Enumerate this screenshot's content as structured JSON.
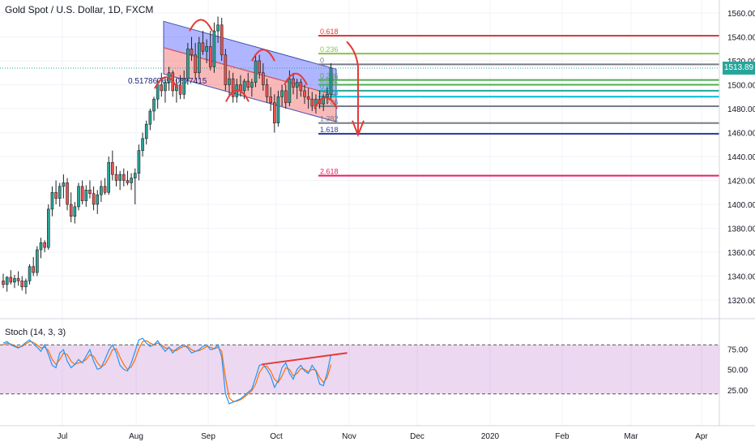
{
  "header": {
    "title": "Gold Spot / U.S. Dollar, 1D, FXCM",
    "last_price": "1513.89"
  },
  "chart_data": {
    "type": "candlestick",
    "symbol": "Gold Spot / U.S. Dollar",
    "interval": "1D",
    "source": "FXCM",
    "yaxis": {
      "ticks": [
        "1560.00",
        "1540.00",
        "1520.00",
        "1500.00",
        "1480.00",
        "1460.00",
        "1440.00",
        "1420.00",
        "1400.00",
        "1380.00",
        "1360.00",
        "1340.00",
        "1320.00"
      ],
      "range": [
        1310,
        1564
      ]
    },
    "xaxis": {
      "ticks": [
        "Jul",
        "Aug",
        "Sep",
        "Oct",
        "Nov",
        "Dec",
        "2020",
        "Feb",
        "Mar",
        "Apr"
      ]
    },
    "candles": [
      [
        1336,
        1342,
        1330,
        1333
      ],
      [
        1333,
        1340,
        1327,
        1339
      ],
      [
        1339,
        1345,
        1333,
        1335
      ],
      [
        1335,
        1341,
        1330,
        1338
      ],
      [
        1338,
        1344,
        1332,
        1336
      ],
      [
        1336,
        1340,
        1328,
        1331
      ],
      [
        1331,
        1338,
        1325,
        1336
      ],
      [
        1336,
        1350,
        1333,
        1348
      ],
      [
        1348,
        1356,
        1340,
        1343
      ],
      [
        1343,
        1365,
        1340,
        1362
      ],
      [
        1362,
        1372,
        1355,
        1368
      ],
      [
        1368,
        1370,
        1360,
        1364
      ],
      [
        1364,
        1400,
        1362,
        1396
      ],
      [
        1396,
        1415,
        1390,
        1410
      ],
      [
        1410,
        1420,
        1400,
        1405
      ],
      [
        1405,
        1418,
        1398,
        1415
      ],
      [
        1415,
        1425,
        1405,
        1418
      ],
      [
        1418,
        1422,
        1395,
        1400
      ],
      [
        1400,
        1410,
        1385,
        1390
      ],
      [
        1390,
        1402,
        1384,
        1398
      ],
      [
        1398,
        1418,
        1395,
        1415
      ],
      [
        1415,
        1420,
        1400,
        1403
      ],
      [
        1403,
        1416,
        1398,
        1412
      ],
      [
        1412,
        1420,
        1405,
        1409
      ],
      [
        1409,
        1415,
        1395,
        1400
      ],
      [
        1400,
        1412,
        1392,
        1408
      ],
      [
        1408,
        1420,
        1402,
        1415
      ],
      [
        1415,
        1422,
        1408,
        1410
      ],
      [
        1410,
        1440,
        1408,
        1435
      ],
      [
        1435,
        1445,
        1420,
        1425
      ],
      [
        1425,
        1432,
        1415,
        1420
      ],
      [
        1420,
        1428,
        1412,
        1425
      ],
      [
        1425,
        1430,
        1415,
        1420
      ],
      [
        1420,
        1428,
        1416,
        1418
      ],
      [
        1418,
        1426,
        1412,
        1422
      ],
      [
        1422,
        1430,
        1400,
        1426
      ],
      [
        1426,
        1450,
        1420,
        1445
      ],
      [
        1445,
        1460,
        1440,
        1455
      ],
      [
        1455,
        1470,
        1450,
        1467
      ],
      [
        1467,
        1480,
        1462,
        1478
      ],
      [
        1478,
        1490,
        1470,
        1488
      ],
      [
        1488,
        1505,
        1480,
        1500
      ],
      [
        1500,
        1510,
        1490,
        1495
      ],
      [
        1495,
        1505,
        1485,
        1502
      ],
      [
        1502,
        1515,
        1495,
        1510
      ],
      [
        1510,
        1512,
        1490,
        1495
      ],
      [
        1495,
        1505,
        1485,
        1500
      ],
      [
        1500,
        1508,
        1488,
        1492
      ],
      [
        1492,
        1512,
        1488,
        1505
      ],
      [
        1505,
        1535,
        1500,
        1530
      ],
      [
        1530,
        1540,
        1520,
        1525
      ],
      [
        1525,
        1535,
        1505,
        1510
      ],
      [
        1510,
        1540,
        1505,
        1535
      ],
      [
        1535,
        1545,
        1525,
        1528
      ],
      [
        1528,
        1538,
        1518,
        1532
      ],
      [
        1532,
        1545,
        1512,
        1515
      ],
      [
        1515,
        1552,
        1510,
        1545
      ],
      [
        1545,
        1557,
        1535,
        1550
      ],
      [
        1550,
        1556,
        1520,
        1525
      ],
      [
        1525,
        1530,
        1495,
        1500
      ],
      [
        1500,
        1512,
        1490,
        1505
      ],
      [
        1505,
        1510,
        1485,
        1490
      ],
      [
        1490,
        1505,
        1485,
        1500
      ],
      [
        1500,
        1508,
        1490,
        1495
      ],
      [
        1495,
        1505,
        1488,
        1503
      ],
      [
        1503,
        1510,
        1495,
        1498
      ],
      [
        1498,
        1505,
        1490,
        1502
      ],
      [
        1502,
        1525,
        1498,
        1520
      ],
      [
        1520,
        1525,
        1505,
        1510
      ],
      [
        1510,
        1518,
        1495,
        1500
      ],
      [
        1500,
        1505,
        1485,
        1490
      ],
      [
        1490,
        1498,
        1478,
        1485
      ],
      [
        1485,
        1492,
        1460,
        1468
      ],
      [
        1468,
        1495,
        1465,
        1490
      ],
      [
        1490,
        1500,
        1482,
        1495
      ],
      [
        1495,
        1500,
        1480,
        1485
      ],
      [
        1485,
        1512,
        1482,
        1505
      ],
      [
        1505,
        1510,
        1492,
        1498
      ],
      [
        1498,
        1505,
        1488,
        1502
      ],
      [
        1502,
        1505,
        1490,
        1495
      ],
      [
        1495,
        1500,
        1484,
        1490
      ],
      [
        1490,
        1497,
        1480,
        1488
      ],
      [
        1488,
        1494,
        1478,
        1482
      ],
      [
        1482,
        1492,
        1476,
        1488
      ],
      [
        1488,
        1495,
        1480,
        1484
      ],
      [
        1484,
        1492,
        1478,
        1490
      ],
      [
        1490,
        1498,
        1484,
        1492
      ],
      [
        1492,
        1518,
        1488,
        1514
      ]
    ],
    "fib_levels": [
      {
        "label": "0.618",
        "value": 1541,
        "color": "#e53935"
      },
      {
        "label": "0.236",
        "value": 1526,
        "color": "#8bc34a"
      },
      {
        "label": "0",
        "value": 1517,
        "color": "#787b86"
      },
      {
        "label": "0.236",
        "value": 1504,
        "color": "#4caf50"
      },
      {
        "label": "0.382",
        "value": 1500,
        "color": "#4caf50"
      },
      {
        "label": "0.5",
        "value": 1495,
        "color": "#26a69a"
      },
      {
        "label": "0.618",
        "value": 1490,
        "color": "#00bcd4"
      },
      {
        "label": "0.786",
        "value": 1482,
        "color": "#787b86"
      },
      {
        "label": "1.382",
        "value": 1468,
        "color": "#787b86"
      },
      {
        "label": "1.618",
        "value": 1459,
        "color": "#303f9f"
      },
      {
        "label": "2.618",
        "value": 1424,
        "color": "#e91e63"
      }
    ],
    "annotation": "0.5178676910877415",
    "stochastic": {
      "label": "Stoch (14, 3, 3)",
      "ticks": [
        "75.00",
        "50.00",
        "25.00"
      ],
      "range": [
        0,
        100
      ],
      "bands": [
        80,
        20
      ],
      "k": [
        82,
        84,
        80,
        78,
        76,
        79,
        83,
        86,
        81,
        77,
        72,
        80,
        68,
        55,
        52,
        70,
        74,
        60,
        52,
        56,
        62,
        58,
        66,
        74,
        60,
        50,
        52,
        62,
        73,
        80,
        70,
        55,
        50,
        48,
        58,
        72,
        86,
        88,
        82,
        78,
        80,
        85,
        78,
        72,
        77,
        70,
        75,
        78,
        80,
        76,
        70,
        72,
        74,
        78,
        80,
        74,
        75,
        80,
        65,
        20,
        8,
        10,
        12,
        14,
        18,
        22,
        26,
        40,
        55,
        56,
        50,
        42,
        28,
        36,
        52,
        58,
        45,
        38,
        50,
        55,
        48,
        45,
        55,
        48,
        32,
        30,
        46,
        68
      ],
      "d": [
        80,
        82,
        81,
        79,
        77,
        78,
        81,
        84,
        83,
        80,
        76,
        77,
        73,
        62,
        56,
        62,
        70,
        68,
        60,
        56,
        58,
        59,
        62,
        68,
        66,
        58,
        53,
        56,
        64,
        74,
        75,
        65,
        56,
        50,
        53,
        62,
        75,
        84,
        85,
        82,
        80,
        82,
        80,
        76,
        76,
        73,
        73,
        76,
        78,
        78,
        74,
        72,
        73,
        75,
        78,
        77,
        75,
        77,
        72,
        40,
        15,
        11,
        11,
        13,
        16,
        20,
        24,
        32,
        46,
        53,
        54,
        48,
        38,
        34,
        42,
        52,
        50,
        42,
        45,
        51,
        50,
        47,
        50,
        49,
        40,
        34,
        40,
        56
      ]
    }
  }
}
